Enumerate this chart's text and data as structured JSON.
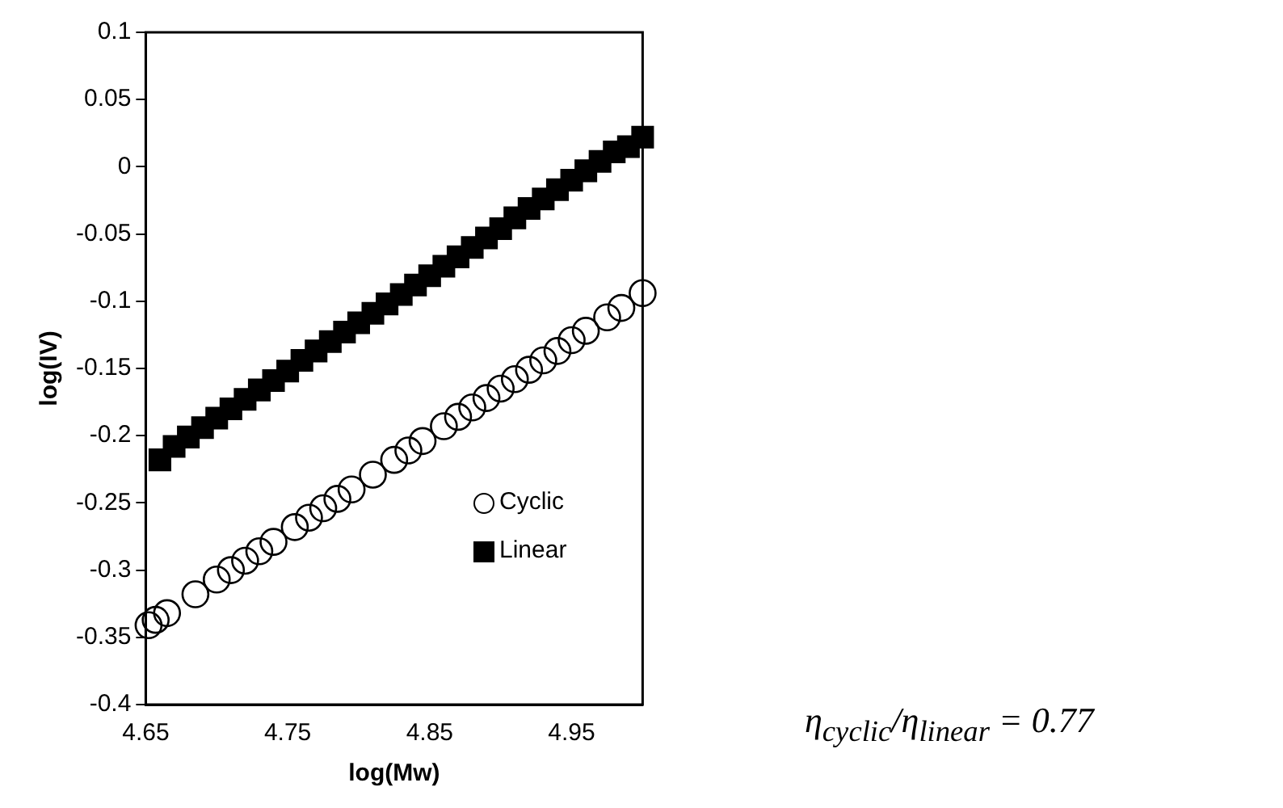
{
  "chart_data": {
    "type": "scatter",
    "xlabel": "log(Mw)",
    "ylabel": "log(IV)",
    "xlim": [
      4.65,
      5.0
    ],
    "xticks": [
      4.65,
      4.75,
      4.85,
      4.95
    ],
    "ylim": [
      -0.4,
      0.1
    ],
    "yticks": [
      -0.4,
      -0.35,
      -0.3,
      -0.25,
      -0.2,
      -0.15,
      -0.1,
      -0.05,
      0,
      0.05,
      0.1
    ],
    "grid": false,
    "legend": "bottom right",
    "annotations": [
      "η$_{cyclic}$/η$_{linear}$ = 0.77"
    ],
    "series": [
      {
        "name": "Cyclic",
        "color": "#000000",
        "marker": "circle",
        "x": [
          4.652,
          4.657,
          4.665,
          4.685,
          4.7,
          4.71,
          4.72,
          4.73,
          4.74,
          4.755,
          4.765,
          4.775,
          4.785,
          4.795,
          4.81,
          4.825,
          4.835,
          4.845,
          4.86,
          4.87,
          4.88,
          4.89,
          4.9,
          4.91,
          4.92,
          4.93,
          4.94,
          4.95,
          4.96,
          4.975,
          4.985,
          5.0
        ],
        "values": [
          -0.341,
          -0.337,
          -0.332,
          -0.318,
          -0.307,
          -0.3,
          -0.293,
          -0.286,
          -0.279,
          -0.268,
          -0.261,
          -0.254,
          -0.247,
          -0.24,
          -0.229,
          -0.218,
          -0.211,
          -0.204,
          -0.193,
          -0.186,
          -0.179,
          -0.172,
          -0.165,
          -0.158,
          -0.151,
          -0.144,
          -0.137,
          -0.129,
          -0.122,
          -0.112,
          -0.105,
          -0.094
        ]
      },
      {
        "name": "Linear",
        "color": "#000000",
        "marker": "square",
        "x": [
          4.66,
          4.67,
          4.68,
          4.69,
          4.7,
          4.71,
          4.72,
          4.73,
          4.74,
          4.75,
          4.76,
          4.77,
          4.78,
          4.79,
          4.8,
          4.81,
          4.82,
          4.83,
          4.84,
          4.85,
          4.86,
          4.87,
          4.88,
          4.89,
          4.9,
          4.91,
          4.92,
          4.93,
          4.94,
          4.95,
          4.96,
          4.97,
          4.98,
          4.99,
          5.0
        ],
        "values": [
          -0.218,
          -0.208,
          -0.201,
          -0.194,
          -0.187,
          -0.18,
          -0.173,
          -0.166,
          -0.159,
          -0.152,
          -0.144,
          -0.137,
          -0.13,
          -0.123,
          -0.116,
          -0.109,
          -0.102,
          -0.095,
          -0.088,
          -0.081,
          -0.074,
          -0.067,
          -0.06,
          -0.053,
          -0.046,
          -0.038,
          -0.031,
          -0.024,
          -0.017,
          -0.01,
          -0.003,
          0.004,
          0.011,
          0.015,
          0.022
        ]
      }
    ]
  }
}
